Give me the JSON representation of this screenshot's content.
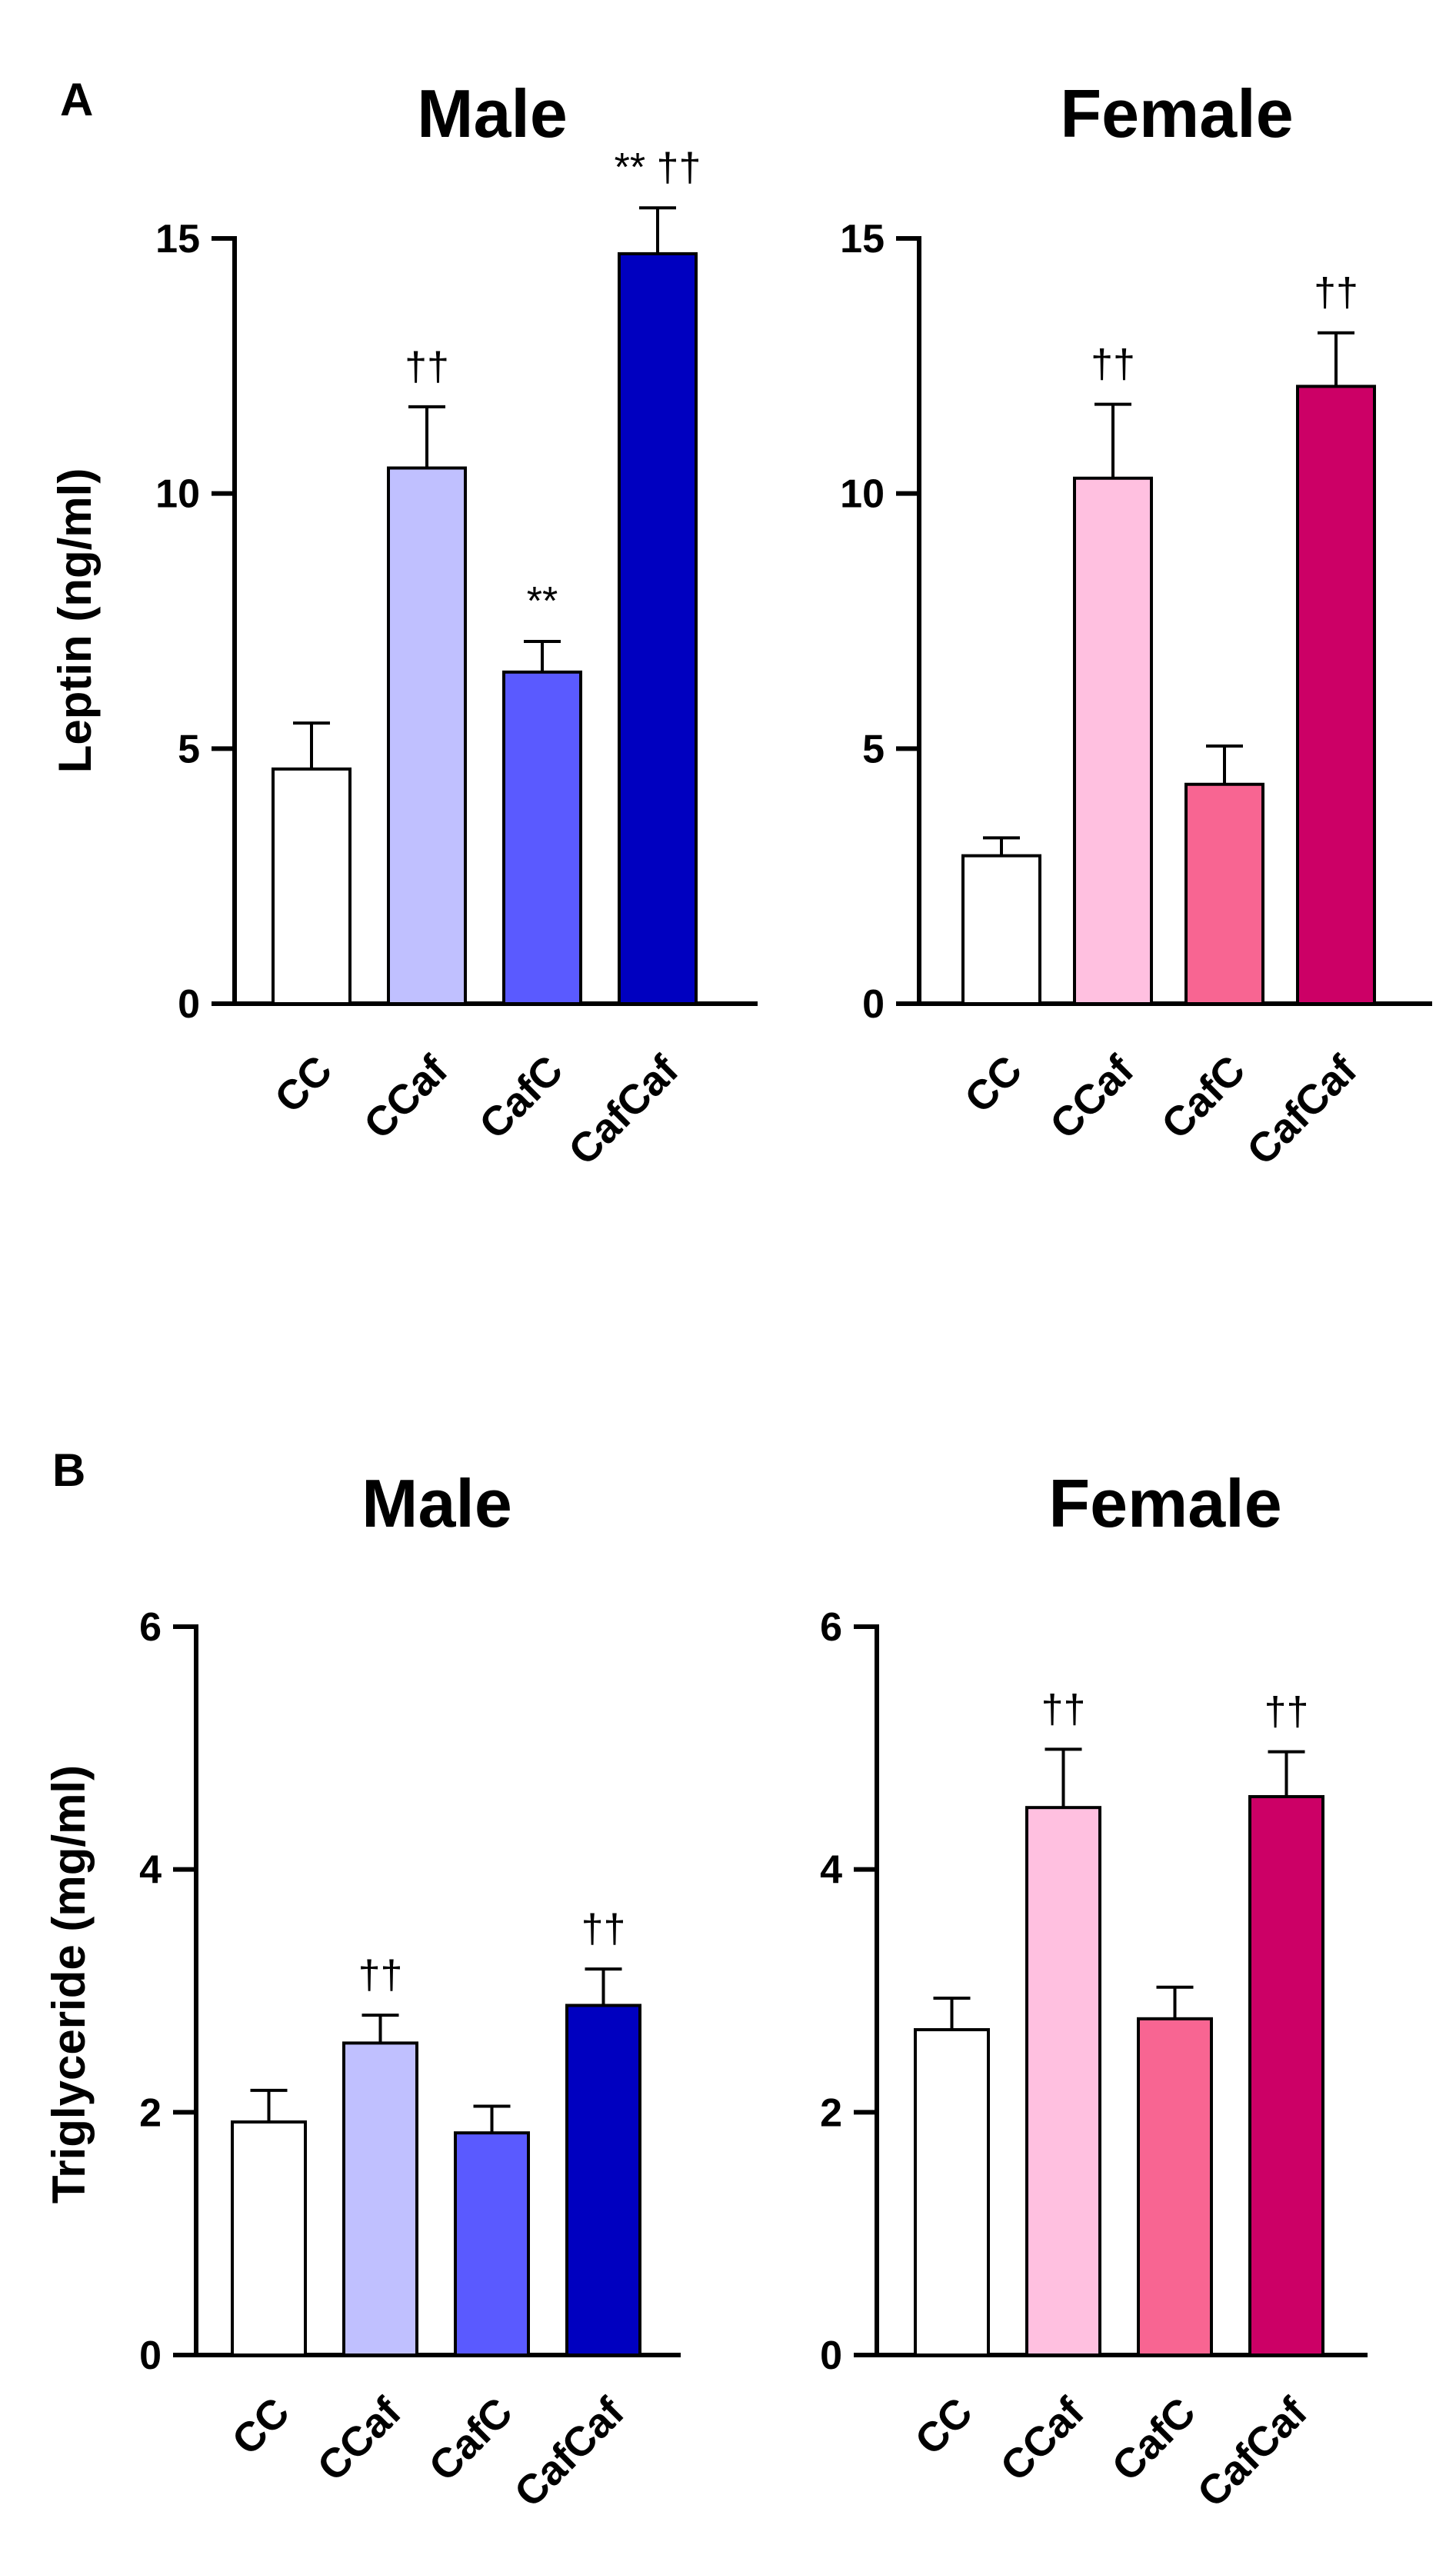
{
  "figure": {
    "panels": [
      {
        "letter": "A"
      },
      {
        "letter": "B"
      }
    ]
  },
  "chart_data": [
    {
      "type": "bar",
      "panel": "A",
      "title": "Male",
      "xlabel": "",
      "ylabel": "Leptin (ng/ml)",
      "ylim": [
        0,
        15
      ],
      "yticks": [
        "0",
        "5",
        "10",
        "15"
      ],
      "grid": false,
      "categories": [
        "CC",
        "CCaf",
        "CafC",
        "CafCaf"
      ],
      "values": [
        4.6,
        10.5,
        6.5,
        14.7
      ],
      "errors": [
        0.9,
        1.2,
        0.6,
        0.9
      ],
      "significance": [
        "",
        "††",
        "**",
        "** ††"
      ],
      "colors": [
        "#ffffff",
        "#c0c0ff",
        "#5a5aff",
        "#0000c0"
      ]
    },
    {
      "type": "bar",
      "panel": "A",
      "title": "Female",
      "xlabel": "",
      "ylabel": "",
      "ylim": [
        0,
        15
      ],
      "yticks": [
        "0",
        "5",
        "10",
        "15"
      ],
      "grid": false,
      "categories": [
        "CC",
        "CCaf",
        "CafC",
        "CafCaf"
      ],
      "values": [
        2.9,
        10.3,
        4.3,
        12.1
      ],
      "errors": [
        0.35,
        1.45,
        0.75,
        1.05
      ],
      "significance": [
        "",
        "††",
        "",
        "††"
      ],
      "colors": [
        "#ffffff",
        "#ffc0e0",
        "#f86592",
        "#cc0066"
      ]
    },
    {
      "type": "bar",
      "panel": "B",
      "title": "Male",
      "xlabel": "",
      "ylabel": "Triglyceride (mg/ml)",
      "ylim": [
        0,
        6
      ],
      "yticks": [
        "0",
        "2",
        "4",
        "6"
      ],
      "grid": false,
      "categories": [
        "CC",
        "CCaf",
        "CafC",
        "CafCaf"
      ],
      "values": [
        1.92,
        2.57,
        1.83,
        2.88
      ],
      "errors": [
        0.26,
        0.23,
        0.22,
        0.3
      ],
      "significance": [
        "",
        "††",
        "",
        "††"
      ],
      "colors": [
        "#ffffff",
        "#c0c0ff",
        "#5a5aff",
        "#0000c0"
      ]
    },
    {
      "type": "bar",
      "panel": "B",
      "title": "Female",
      "xlabel": "",
      "ylabel": "",
      "ylim": [
        0,
        6
      ],
      "yticks": [
        "0",
        "2",
        "4",
        "6"
      ],
      "grid": false,
      "categories": [
        "CC",
        "CCaf",
        "CafC",
        "CafCaf"
      ],
      "values": [
        2.68,
        4.51,
        2.77,
        4.6
      ],
      "errors": [
        0.26,
        0.48,
        0.26,
        0.37
      ],
      "significance": [
        "",
        "††",
        "",
        "††"
      ],
      "colors": [
        "#ffffff",
        "#ffc0e0",
        "#f86592",
        "#cc0066"
      ]
    }
  ]
}
